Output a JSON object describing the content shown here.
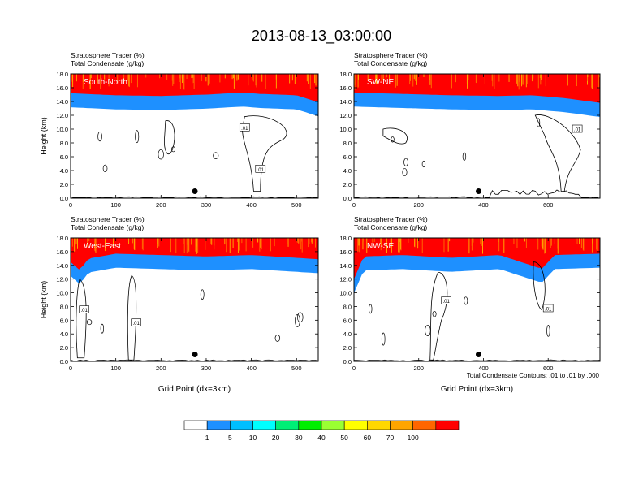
{
  "main_title": "2013-08-13_03:00:00",
  "colors": {
    "levels": [
      "#ffffff",
      "#1e90ff",
      "#00bfff",
      "#00ffff",
      "#00ee76",
      "#00ee00",
      "#9aff32",
      "#ffff00",
      "#ffd700",
      "#ffa500",
      "#ff6600",
      "#ff0000"
    ],
    "frame": "#000000",
    "marker": "#000000"
  },
  "chart_data": [
    {
      "type": "heatmap",
      "panel_label": "South-North",
      "title_line1": "Stratosphere Tracer   (%)",
      "title_line2": "Total Condensate   (g/kg)",
      "xlabel": "",
      "ylabel": "Height (km)",
      "xlim": [
        0,
        548
      ],
      "ylim": [
        0,
        18
      ],
      "x_ticks": [
        "0",
        "100",
        "200",
        "300",
        "400",
        "500"
      ],
      "y_ticks": [
        "0.0",
        "2.0",
        "4.0",
        "6.0",
        "8.0",
        "10.0",
        "12.0",
        "14.0",
        "16.0",
        "18.0"
      ],
      "tropopause_km": 14.4,
      "dip_points": [
        [
          0,
          14.7
        ],
        [
          100,
          14.4
        ],
        [
          200,
          14.3
        ],
        [
          300,
          14.5
        ],
        [
          380,
          14.8
        ],
        [
          420,
          14.6
        ],
        [
          500,
          14.4
        ],
        [
          548,
          13.4
        ]
      ],
      "contour_labels": [
        ".01",
        ".01"
      ],
      "marker_x": 275,
      "marker_y_km": 1.0
    },
    {
      "type": "heatmap",
      "panel_label": "SW-NE",
      "title_line1": "Stratosphere Tracer   (%)",
      "title_line2": "Total Condensate   (g/kg)",
      "xlabel": "",
      "ylabel": "",
      "xlim": [
        0,
        760
      ],
      "ylim": [
        0,
        18
      ],
      "x_ticks": [
        "0",
        "200",
        "400",
        "600"
      ],
      "y_ticks": [
        "0.0",
        "2.0",
        "4.0",
        "6.0",
        "8.0",
        "10.0",
        "12.0",
        "14.0",
        "16.0",
        "18.0"
      ],
      "tropopause_km": 14.2,
      "dip_points": [
        [
          0,
          14.8
        ],
        [
          150,
          14.6
        ],
        [
          300,
          14.4
        ],
        [
          450,
          14.3
        ],
        [
          550,
          14.4
        ],
        [
          650,
          14.0
        ],
        [
          760,
          13.3
        ]
      ],
      "contour_labels": [
        ".01"
      ],
      "marker_x": 385,
      "marker_y_km": 1.0
    },
    {
      "type": "heatmap",
      "panel_label": "West-East",
      "title_line1": "Stratosphere Tracer   (%)",
      "title_line2": "Total Condensate   (g/kg)",
      "xlabel": "Grid Point (dx=3km)",
      "ylabel": "Height (km)",
      "xlim": [
        0,
        548
      ],
      "ylim": [
        0,
        18
      ],
      "x_ticks": [
        "0",
        "100",
        "200",
        "300",
        "400",
        "500"
      ],
      "y_ticks": [
        "0.0",
        "2.0",
        "4.0",
        "6.0",
        "8.0",
        "10.0",
        "12.0",
        "14.0",
        "16.0",
        "18.0"
      ],
      "tropopause_km": 14.6,
      "dip_points": [
        [
          0,
          14.0
        ],
        [
          20,
          12.8
        ],
        [
          40,
          14.5
        ],
        [
          100,
          15.2
        ],
        [
          200,
          15.0
        ],
        [
          300,
          14.8
        ],
        [
          400,
          15.0
        ],
        [
          548,
          14.4
        ]
      ],
      "contour_labels": [
        ".01",
        ".01"
      ],
      "marker_x": 275,
      "marker_y_km": 1.0
    },
    {
      "type": "heatmap",
      "panel_label": "NW-SE",
      "title_line1": "Stratosphere Tracer   (%)",
      "title_line2": "Total Condensate   (g/kg)",
      "xlabel": "Grid Point (dx=3km)",
      "ylabel": "",
      "xlim": [
        0,
        760
      ],
      "ylim": [
        0,
        18
      ],
      "x_ticks": [
        "0",
        "200",
        "400",
        "600"
      ],
      "y_ticks": [
        "0.0",
        "2.0",
        "4.0",
        "6.0",
        "8.0",
        "10.0",
        "12.0",
        "14.0",
        "16.0",
        "18.0"
      ],
      "tropopause_km": 15.0,
      "dip_points": [
        [
          0,
          11.5
        ],
        [
          30,
          14.8
        ],
        [
          150,
          15.0
        ],
        [
          300,
          14.6
        ],
        [
          450,
          15.0
        ],
        [
          580,
          13.0
        ],
        [
          620,
          15.0
        ],
        [
          760,
          15.2
        ]
      ],
      "contour_labels": [
        ".01",
        ".01"
      ],
      "marker_x": 385,
      "marker_y_km": 1.0
    }
  ],
  "contour_note": "Total Condensate Contours: .01 to .01 by .000",
  "colorbar": {
    "labels": [
      "1",
      "5",
      "10",
      "20",
      "30",
      "40",
      "50",
      "60",
      "70",
      "100"
    ]
  }
}
